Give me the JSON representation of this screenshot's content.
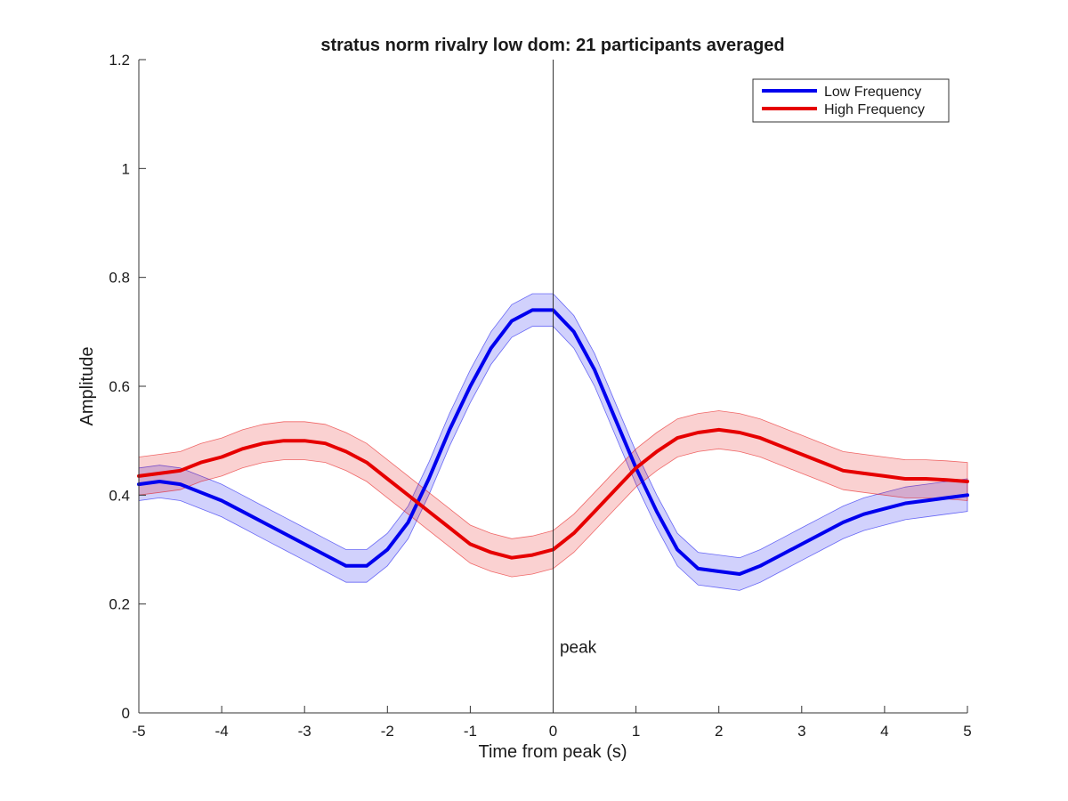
{
  "chart_data": {
    "type": "line",
    "title": "stratus norm rivalry low dom: 21 participants averaged",
    "xlabel": "Time from peak (s)",
    "ylabel": "Amplitude",
    "xlim": [
      -5,
      5
    ],
    "ylim": [
      0,
      1.2
    ],
    "xticks": [
      -5,
      -4,
      -3,
      -2,
      -1,
      0,
      1,
      2,
      3,
      4,
      5
    ],
    "yticks": [
      0,
      0.2,
      0.4,
      0.6,
      0.8,
      1,
      1.2
    ],
    "xtick_labels": [
      "-5",
      "-4",
      "-3",
      "-2",
      "-1",
      "0",
      "1",
      "2",
      "3",
      "4",
      "5"
    ],
    "ytick_labels": [
      "0",
      "0.2",
      "0.4",
      "0.6",
      "0.8",
      "1",
      "1.2"
    ],
    "grid": false,
    "legend_position": "top-right",
    "x": [
      -5,
      -4.75,
      -4.5,
      -4.25,
      -4,
      -3.75,
      -3.5,
      -3.25,
      -3,
      -2.75,
      -2.5,
      -2.25,
      -2,
      -1.75,
      -1.5,
      -1.25,
      -1,
      -0.75,
      -0.5,
      -0.25,
      0,
      0.25,
      0.5,
      0.75,
      1,
      1.25,
      1.5,
      1.75,
      2,
      2.25,
      2.5,
      2.75,
      3,
      3.25,
      3.5,
      3.75,
      4,
      4.25,
      4.5,
      4.75,
      5
    ],
    "series": [
      {
        "name": "Low Frequency",
        "color": "#0000ee",
        "values": [
          0.42,
          0.425,
          0.42,
          0.405,
          0.39,
          0.37,
          0.35,
          0.33,
          0.31,
          0.29,
          0.27,
          0.27,
          0.3,
          0.35,
          0.43,
          0.52,
          0.6,
          0.67,
          0.72,
          0.74,
          0.74,
          0.7,
          0.63,
          0.54,
          0.45,
          0.37,
          0.3,
          0.265,
          0.26,
          0.255,
          0.27,
          0.29,
          0.31,
          0.33,
          0.35,
          0.365,
          0.375,
          0.385,
          0.39,
          0.395,
          0.4
        ],
        "band": 0.03
      },
      {
        "name": "High Frequency",
        "color": "#e60000",
        "values": [
          0.435,
          0.44,
          0.445,
          0.46,
          0.47,
          0.485,
          0.495,
          0.5,
          0.5,
          0.495,
          0.48,
          0.46,
          0.43,
          0.4,
          0.37,
          0.34,
          0.31,
          0.295,
          0.285,
          0.29,
          0.3,
          0.33,
          0.37,
          0.41,
          0.45,
          0.48,
          0.505,
          0.515,
          0.52,
          0.515,
          0.505,
          0.49,
          0.475,
          0.46,
          0.445,
          0.44,
          0.435,
          0.43,
          0.43,
          0.428,
          0.425
        ],
        "band": 0.035
      }
    ],
    "annotations": [
      {
        "text": "peak",
        "x": 0.08,
        "y": 0.12
      }
    ],
    "vline_x": 0
  }
}
